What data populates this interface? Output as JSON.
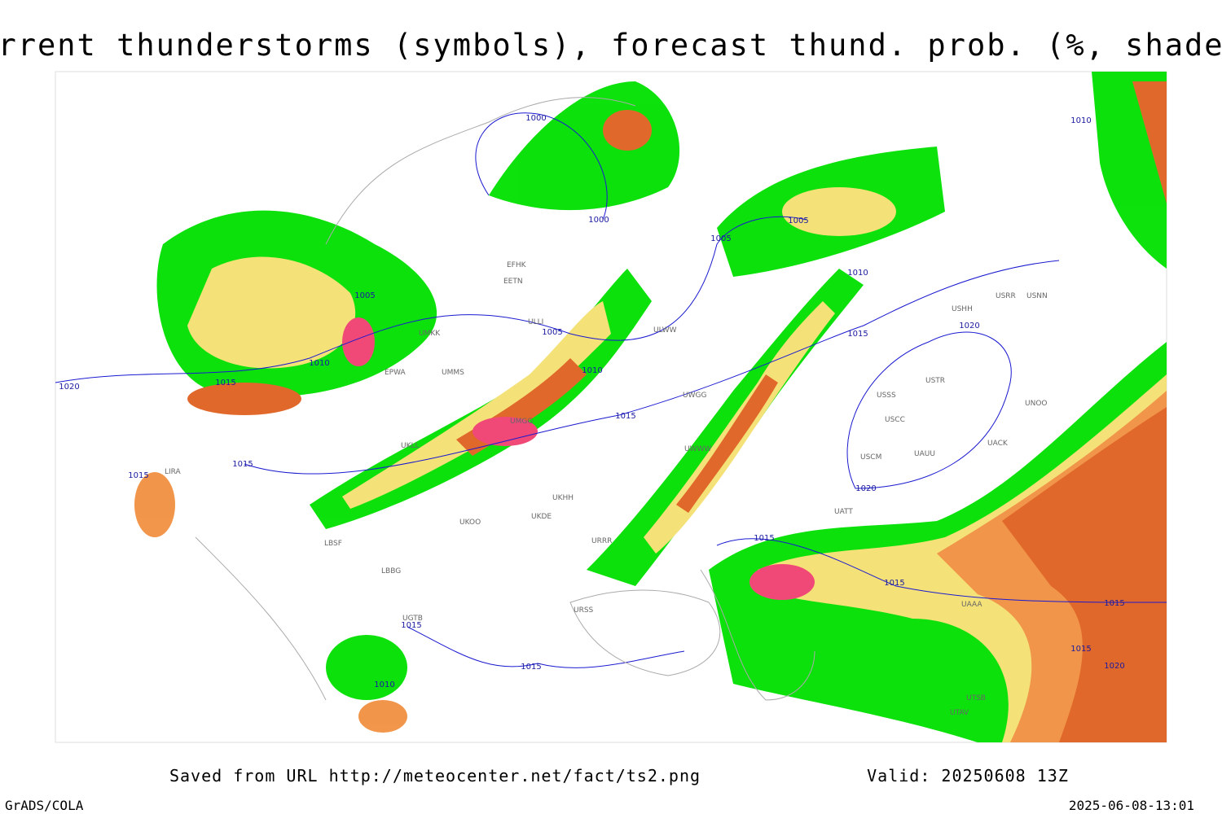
{
  "title": "Current thunderstorms (symbols), forecast thund. prob. (%, shaded)",
  "isobar_labels": [
    "1000",
    "1000",
    "1005",
    "1005",
    "1005",
    "1005",
    "1010",
    "1010",
    "1010",
    "1010",
    "1015",
    "1015",
    "1015",
    "1015",
    "1015",
    "1015",
    "1015",
    "1015",
    "1015",
    "1015",
    "1015",
    "1020",
    "1020",
    "1020",
    "1020",
    "1010"
  ],
  "station_labels": [
    "EFHK",
    "EETN",
    "ULLI",
    "UMKK",
    "EPWA",
    "UMMS",
    "UMGG",
    "UKLL",
    "LIRA",
    "LBSF",
    "LBBG",
    "UKOO",
    "UKDE",
    "UKHH",
    "ULWW",
    "UWGG",
    "UWWW",
    "URRR",
    "URSS",
    "UGTB",
    "USSS",
    "USTR",
    "USCC",
    "USCM",
    "UAUU",
    "UATT",
    "UACK",
    "UNOO",
    "USHH",
    "USRR",
    "USNN",
    "UTAV",
    "UTSB",
    "UAAA"
  ],
  "footer": {
    "source": "Saved from URL http://meteocenter.net/fact/ts2.png",
    "valid": "Valid: 20250608 13Z",
    "software": "GrADS/COLA",
    "timestamp": "2025-06-08-13:01"
  }
}
